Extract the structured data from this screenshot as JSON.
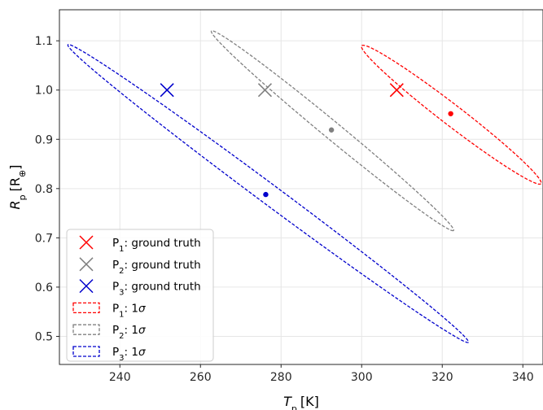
{
  "chart_data": {
    "type": "scatter",
    "title": "",
    "xlabel": "T_p [K]",
    "ylabel": "R_p [R_⊕]",
    "xlim": [
      225,
      345
    ],
    "ylim": [
      0.443,
      1.163
    ],
    "xticks": [
      240,
      260,
      280,
      300,
      320,
      340
    ],
    "yticks": [
      0.5,
      0.6,
      0.7,
      0.8,
      0.9,
      1.0,
      1.1
    ],
    "xtick_labels": [
      "240",
      "260",
      "280",
      "300",
      "320",
      "340"
    ],
    "ytick_labels": [
      "0.5",
      "0.6",
      "0.7",
      "0.8",
      "0.9",
      "1.0",
      "1.1"
    ],
    "grid": true,
    "legend_position": "lower-left",
    "series": [
      {
        "name": "P1",
        "color": "#ff0000",
        "ground_truth": {
          "x": 308.7,
          "y": 1.0
        },
        "estimate": {
          "x": 322.1,
          "y": 0.952
        },
        "ellipse_1sigma": {
          "start": {
            "x": 300.0,
            "y": 1.09
          },
          "end": {
            "x": 344.5,
            "y": 0.81
          },
          "halfwidth": 0.58
        }
      },
      {
        "name": "P2",
        "color": "#808080",
        "ground_truth": {
          "x": 276.0,
          "y": 1.0
        },
        "estimate": {
          "x": 292.5,
          "y": 0.919
        },
        "ellipse_1sigma": {
          "start": {
            "x": 262.7,
            "y": 1.12
          },
          "end": {
            "x": 322.8,
            "y": 0.715
          },
          "halfwidth": 0.49
        }
      },
      {
        "name": "P3",
        "color": "#0000cc",
        "ground_truth": {
          "x": 251.7,
          "y": 1.0
        },
        "estimate": {
          "x": 276.2,
          "y": 0.788
        },
        "ellipse_1sigma": {
          "start": {
            "x": 227.1,
            "y": 1.092
          },
          "end": {
            "x": 326.5,
            "y": 0.488
          },
          "halfwidth": 0.56
        }
      }
    ],
    "legend": [
      {
        "sub": "1",
        "text": ": ground truth",
        "kind": "cross",
        "color": "#ff0000"
      },
      {
        "sub": "2",
        "text": ": ground truth",
        "kind": "cross",
        "color": "#808080"
      },
      {
        "sub": "3",
        "text": ": ground truth",
        "kind": "cross",
        "color": "#0000cc"
      },
      {
        "sub": "1",
        "text": ": 1",
        "sigma": "σ",
        "kind": "dashed-box",
        "color": "#ff0000"
      },
      {
        "sub": "2",
        "text": ": 1",
        "sigma": "σ",
        "kind": "dashed-box",
        "color": "#808080"
      },
      {
        "sub": "3",
        "text": ": 1",
        "sigma": "σ",
        "kind": "dashed-box",
        "color": "#0000cc"
      }
    ]
  }
}
